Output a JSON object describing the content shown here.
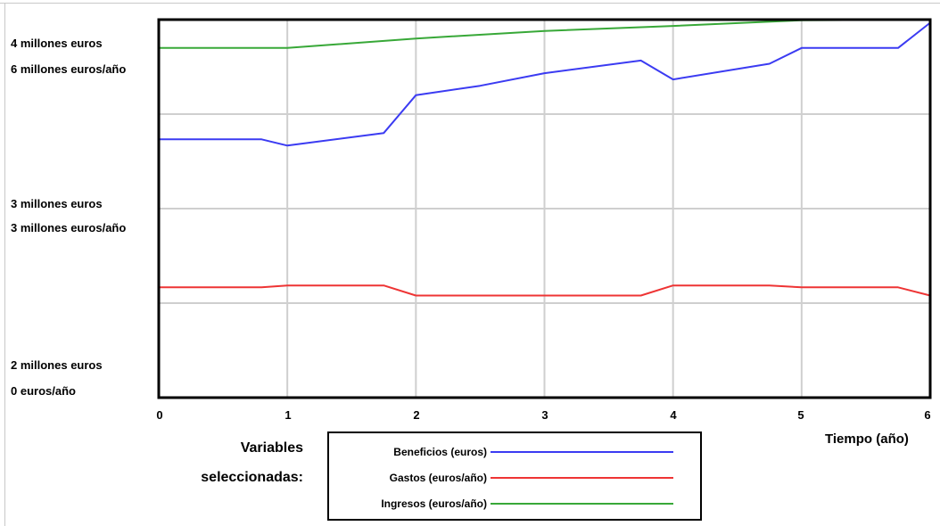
{
  "chart_data": {
    "type": "line",
    "xlabel": "Tiempo (año)",
    "x_ticks": [
      "0",
      "1",
      "2",
      "3",
      "4",
      "5",
      "6"
    ],
    "xlim": [
      0,
      6
    ],
    "ylim": [
      0,
      6000000
    ],
    "y_axis_labels": [
      {
        "euros": "4 millones euros",
        "euros_per_year": "6 millones euros/año"
      },
      {
        "euros": "3 millones euros",
        "euros_per_year": "3 millones euros/año"
      },
      {
        "euros": "2 millones euros",
        "euros_per_year": "0 euros/año"
      }
    ],
    "legend_title": "Variables seleccionadas:",
    "legend_title_lines": [
      "Variables",
      "seleccionadas:"
    ],
    "series": [
      {
        "name": "Beneficios (euros)",
        "color": "#3b3bf2",
        "x": [
          0,
          0.8,
          1,
          1.75,
          2,
          2.5,
          3,
          3.75,
          4,
          4.75,
          5,
          5.75,
          6
        ],
        "values": [
          4100000,
          4100000,
          4000000,
          4200000,
          4800000,
          4950000,
          5150000,
          5350000,
          5050000,
          5300000,
          5550000,
          5550000,
          5950000
        ]
      },
      {
        "name": "Gastos (euros/año)",
        "color": "#ee3434",
        "x": [
          0,
          0.8,
          1,
          1.75,
          2,
          3,
          3.75,
          4,
          4.75,
          5,
          5.75,
          6
        ],
        "values": [
          1750000,
          1750000,
          1780000,
          1780000,
          1620000,
          1620000,
          1620000,
          1780000,
          1780000,
          1750000,
          1750000,
          1620000
        ]
      },
      {
        "name": "Ingresos (euros/año)",
        "color": "#38a838",
        "x": [
          0,
          1,
          2,
          3,
          4,
          5,
          6
        ],
        "values": [
          5550000,
          5550000,
          5700000,
          5820000,
          5900000,
          5990000,
          6000000
        ]
      }
    ],
    "grid": true
  }
}
